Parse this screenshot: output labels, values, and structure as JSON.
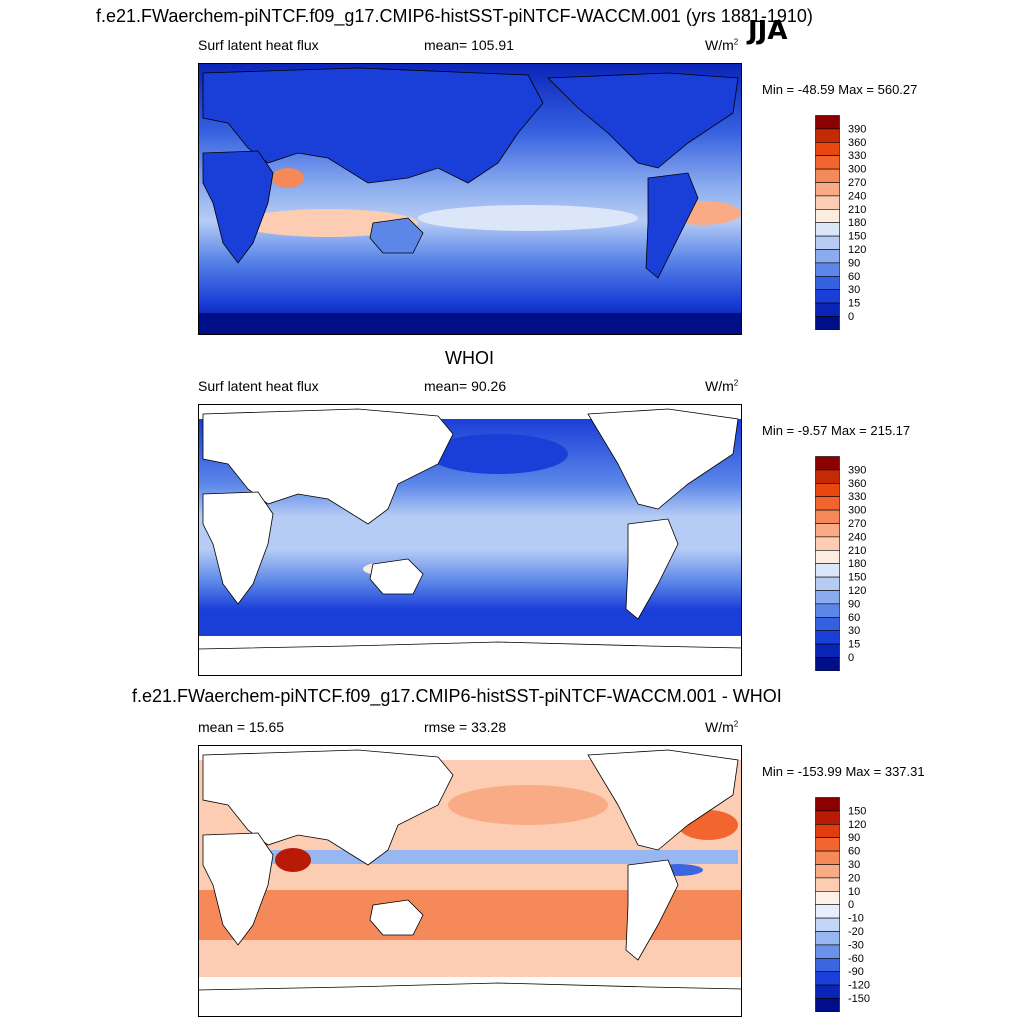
{
  "figure": {
    "title": "f.e21.FWaerchem-piNTCF.f09_g17.CMIP6-histSST-piNTCF-WACCM.001 (yrs 1881-1910)",
    "season": "JJA"
  },
  "panels": [
    {
      "id": "model",
      "heading": "",
      "left_label": "Surf latent heat flux",
      "center_label": "mean= 105.91",
      "unit_base": "W/m",
      "unit_sup": "2",
      "minmax": "Min = -48.59 Max = 560.27",
      "colorbar_labels": [
        "390",
        "360",
        "330",
        "300",
        "270",
        "240",
        "210",
        "180",
        "150",
        "120",
        "90",
        "60",
        "30",
        "15",
        "0"
      ],
      "colorbar_colors": [
        "#8b0000",
        "#c42a05",
        "#e8470f",
        "#f2652e",
        "#f6895a",
        "#f9ab86",
        "#fccdb3",
        "#fdece0",
        "#dbe6f8",
        "#b6ccf5",
        "#8aabee",
        "#5c87e8",
        "#3560e0",
        "#1a3ed8",
        "#0a24b8",
        "#000e8a"
      ]
    },
    {
      "id": "obs",
      "heading": "WHOI",
      "left_label": "Surf latent heat flux",
      "center_label": "mean=  90.26",
      "unit_base": "W/m",
      "unit_sup": "2",
      "minmax": "Min =  -9.57 Max = 215.17",
      "colorbar_labels": [
        "390",
        "360",
        "330",
        "300",
        "270",
        "240",
        "210",
        "180",
        "150",
        "120",
        "90",
        "60",
        "30",
        "15",
        "0"
      ],
      "colorbar_colors": [
        "#8b0000",
        "#c42a05",
        "#e8470f",
        "#f2652e",
        "#f6895a",
        "#f9ab86",
        "#fccdb3",
        "#fdece0",
        "#dbe6f8",
        "#b6ccf5",
        "#8aabee",
        "#5c87e8",
        "#3560e0",
        "#1a3ed8",
        "#0a24b8",
        "#000e8a"
      ]
    },
    {
      "id": "diff",
      "heading": "f.e21.FWaerchem-piNTCF.f09_g17.CMIP6-histSST-piNTCF-WACCM.001 - WHOI",
      "left_label": "mean =  15.65",
      "center_label": "rmse =  33.28",
      "unit_base": "W/m",
      "unit_sup": "2",
      "minmax": "Min = -153.99 Max = 337.31",
      "colorbar_labels": [
        "150",
        "120",
        "90",
        "60",
        "30",
        "20",
        "10",
        "0",
        "-10",
        "-20",
        "-30",
        "-60",
        "-90",
        "-120",
        "-150"
      ],
      "colorbar_colors": [
        "#8b0000",
        "#b81a05",
        "#e03c0e",
        "#f2652e",
        "#f6895a",
        "#f9ab86",
        "#fccdb3",
        "#fdf0e6",
        "#e6effb",
        "#c4d6f5",
        "#98b6ef",
        "#6a92e8",
        "#3a66e0",
        "#1b3fd8",
        "#0a24b8",
        "#000e8a"
      ]
    }
  ]
}
